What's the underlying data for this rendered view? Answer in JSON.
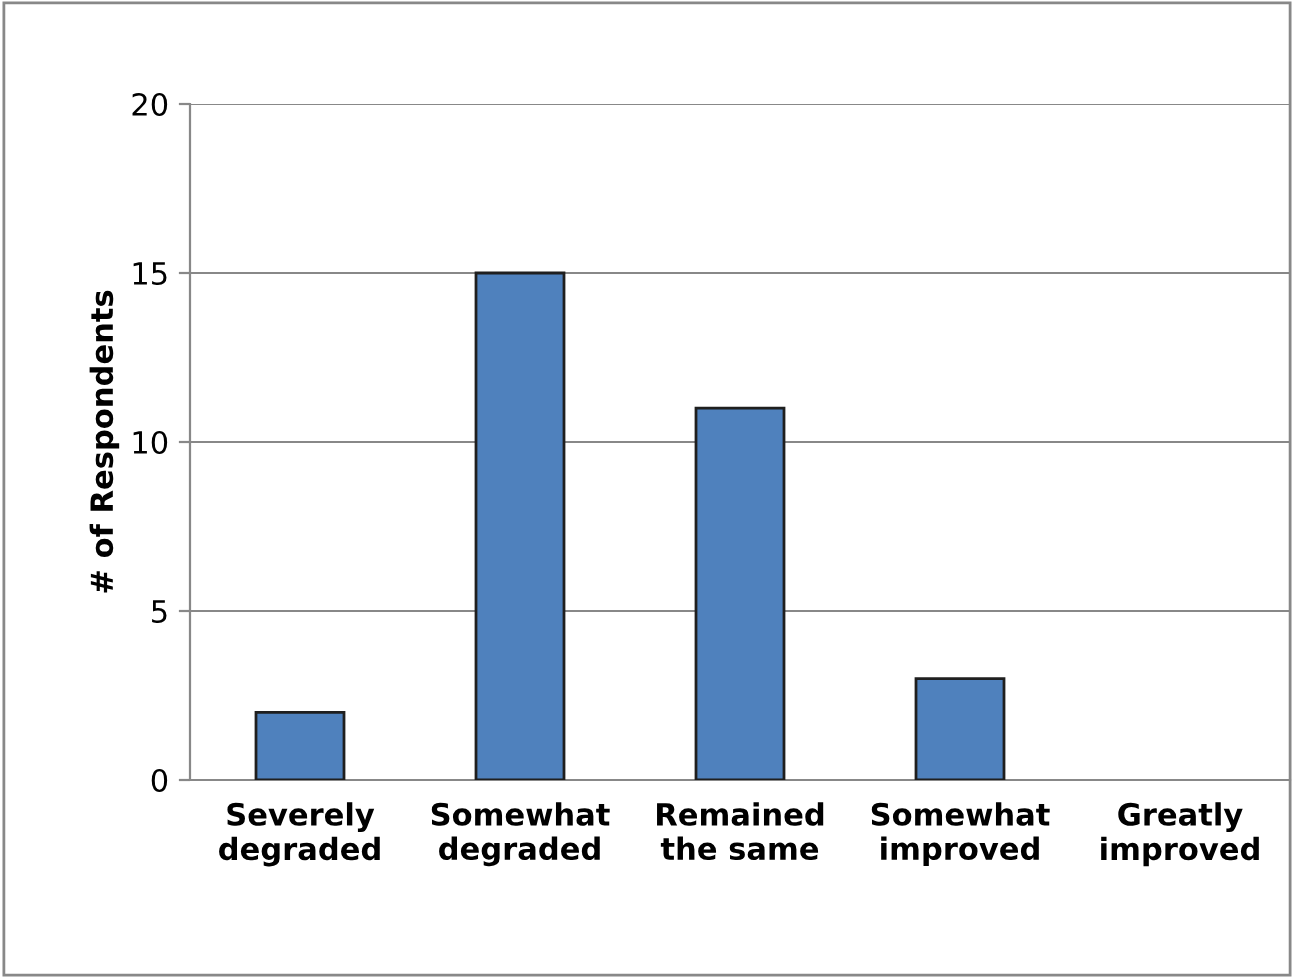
{
  "chart_data": {
    "type": "bar",
    "ylabel": "# of Respondents",
    "categories": [
      "Severely\ndegraded",
      "Somewhat\ndegraded",
      "Remained\nthe same",
      "Somewhat\nimproved",
      "Greatly\nimproved"
    ],
    "values": [
      2,
      15,
      11,
      3,
      0
    ],
    "color": "#4f81bd",
    "ylim": [
      0,
      20
    ],
    "yticks": [
      0,
      5,
      10,
      15,
      20
    ],
    "grid": "y"
  }
}
